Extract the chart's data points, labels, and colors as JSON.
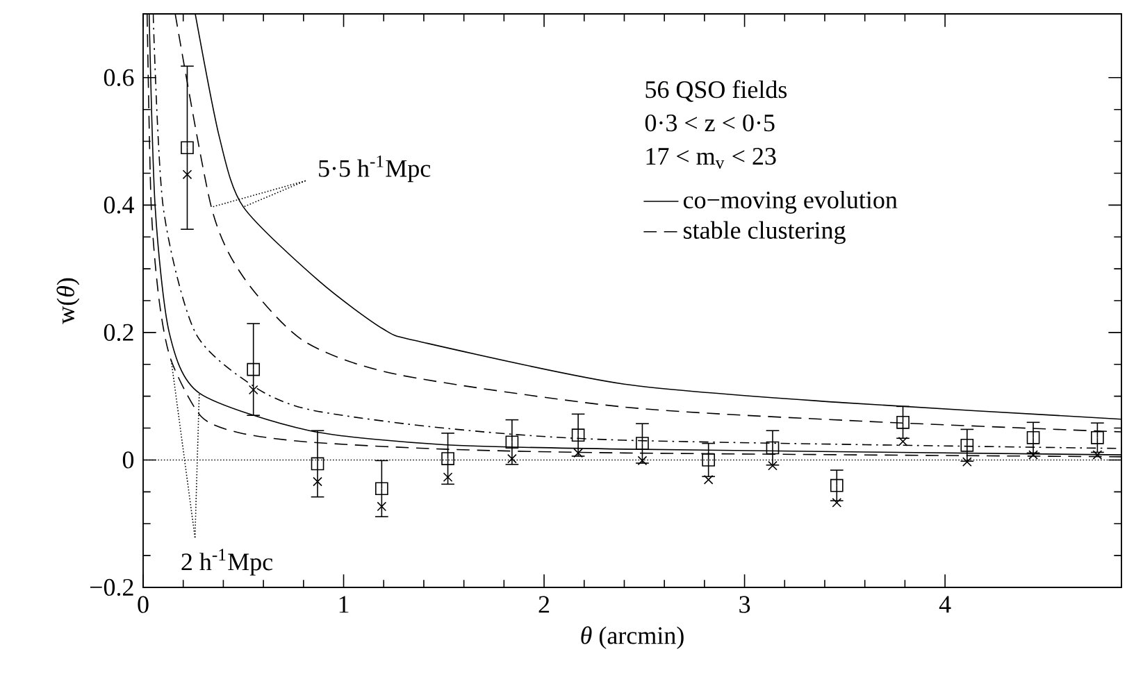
{
  "chart_data": {
    "type": "line",
    "xlabel": "*θ* (arcmin)",
    "ylabel": "w(*θ*)",
    "xlim": [
      0,
      4.88
    ],
    "ylim": [
      -0.2,
      0.7
    ],
    "xticks": [
      0,
      1,
      2,
      3,
      4
    ],
    "yticks": [
      {
        "value": -0.2,
        "label": "−0.2"
      },
      0,
      0.2,
      0.4,
      0.6
    ],
    "grid": false,
    "legend": "top right",
    "series": [
      {
        "name": "co−moving evolution",
        "line_style": "solid",
        "color": "#000000",
        "x": [
          0.26,
          0.38,
          0.5,
          0.88,
          1.2,
          1.39,
          2.4,
          3.49,
          4.88
        ],
        "values": [
          0.7,
          0.507,
          0.397,
          0.28,
          0.205,
          0.185,
          0.119,
          0.09,
          0.064
        ]
      },
      {
        "name": "stable clustering",
        "line_style": "dashed",
        "color": "#000000",
        "x": [
          0.16,
          0.34,
          0.5,
          0.8,
          1.27,
          2.4,
          3.58,
          4.88
        ],
        "values": [
          0.7,
          0.397,
          0.287,
          0.187,
          0.134,
          0.083,
          0.061,
          0.044
        ]
      },
      {
        "line_style": "dashdot",
        "color": "#000000",
        "x": [
          0.05,
          0.1,
          0.26,
          0.55,
          0.83,
          1.5,
          2.4,
          4.88
        ],
        "values": [
          0.7,
          0.397,
          0.2,
          0.116,
          0.079,
          0.05,
          0.031,
          0.018
        ]
      },
      {
        "line_style": "solid",
        "color": "#000000",
        "x": [
          0.03,
          0.06,
          0.13,
          0.28,
          0.83,
          1.5,
          2.4,
          4.88
        ],
        "values": [
          0.7,
          0.397,
          0.2,
          0.105,
          0.046,
          0.024,
          0.017,
          0.008
        ]
      },
      {
        "line_style": "dashed",
        "color": "#000000",
        "x": [
          0.02,
          0.04,
          0.08,
          0.14,
          0.29,
          0.49,
          0.83,
          1.5,
          2.4,
          4.88
        ],
        "values": [
          0.7,
          0.4,
          0.25,
          0.156,
          0.068,
          0.042,
          0.028,
          0.017,
          0.011,
          0.005
        ]
      },
      {
        "type": "scatter",
        "marker": "square",
        "color": "#000000",
        "x": [
          0.22,
          0.55,
          0.87,
          1.19,
          1.52,
          1.84,
          2.17,
          2.49,
          2.82,
          3.14,
          3.46,
          3.79,
          4.11,
          4.44,
          4.76
        ],
        "values": [
          0.49,
          0.142,
          -0.006,
          -0.045,
          0.002,
          0.028,
          0.039,
          0.026,
          0.0,
          0.019,
          -0.04,
          0.059,
          0.023,
          0.035,
          0.035
        ],
        "errors": [
          0.128,
          0.072,
          0.052,
          0.044,
          0.04,
          0.035,
          0.033,
          0.031,
          0.026,
          0.027,
          0.024,
          0.025,
          0.025,
          0.024,
          0.023
        ]
      },
      {
        "type": "scatter",
        "marker": "cross",
        "color": "#000000",
        "x": [
          0.22,
          0.55,
          0.87,
          1.19,
          1.52,
          1.84,
          2.17,
          2.49,
          2.82,
          3.14,
          3.46,
          3.79,
          4.11,
          4.44,
          4.76
        ],
        "values": [
          0.448,
          0.11,
          -0.034,
          -0.073,
          -0.027,
          0.002,
          0.011,
          -0.001,
          -0.031,
          -0.009,
          -0.067,
          0.029,
          -0.003,
          0.008,
          0.008
        ]
      }
    ],
    "ref_lines": [
      {
        "axis": "y",
        "value": 0,
        "line_style": "dotted"
      }
    ],
    "annotations": [
      {
        "text": "5·5 h$^{-1}$Mpc",
        "x": 0.5,
        "y": 0.397
      },
      {
        "text": "2 h$^{-1}$Mpc",
        "x": 0.28,
        "y": 0.105
      },
      "56 QSO fields",
      "0·3 < z < 0·5",
      "17 < m$_{v}$ < 23"
    ]
  }
}
